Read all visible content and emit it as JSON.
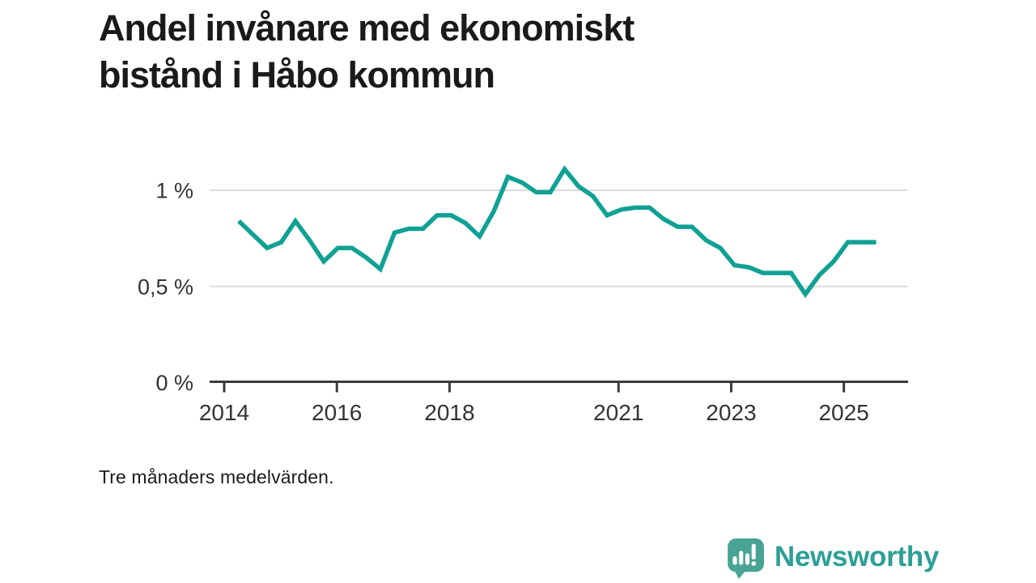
{
  "title": {
    "line1": "Andel invånare med ekonomiskt",
    "line2": "bistånd i Håbo kommun"
  },
  "footnote": "Tre månaders medelvärden.",
  "logo": {
    "text": "Newsworthy",
    "icon": "speech-bubble-with-bar-chart-and-exclamation"
  },
  "colors": {
    "line": "#0FA194",
    "axis": "#3b3b3b",
    "grid": "#dbdbdb",
    "tick_text": "#333333",
    "title_text": "#1a1a1a",
    "logo_mark": "#48A394",
    "logo_text": "#2D9F96"
  },
  "chart_data": {
    "type": "line",
    "title": "Andel invånare med ekonomiskt bistånd i Håbo kommun",
    "subtitle": "Tre månaders medelvärden.",
    "unit": "%",
    "decimal_separator": ",",
    "grid": "horizontal-only",
    "legend": "none",
    "xlim_years": [
      2013.75,
      2026.15
    ],
    "ylim": [
      0,
      1.17
    ],
    "x_tick_years": [
      2014,
      2016,
      2018,
      2021,
      2023,
      2025
    ],
    "y_ticks": [
      {
        "value": 0,
        "label": "0 %"
      },
      {
        "value": 0.5,
        "label": "0,5 %"
      },
      {
        "value": 1,
        "label": "1 %"
      }
    ],
    "series": [
      {
        "name": "Andel invånare med ekonomiskt bistånd",
        "color": "#0FA194",
        "x": [
          "2014 Q2",
          "2014 Q3",
          "2014 Q4",
          "2015 Q1",
          "2015 Q2",
          "2015 Q3",
          "2015 Q4",
          "2016 Q1",
          "2016 Q2",
          "2016 Q3",
          "2016 Q4",
          "2017 Q1",
          "2017 Q2",
          "2017 Q3",
          "2017 Q4",
          "2018 Q1",
          "2018 Q2",
          "2018 Q3",
          "2018 Q4",
          "2019 Q1",
          "2019 Q2",
          "2019 Q3",
          "2019 Q4",
          "2020 Q1",
          "2020 Q2",
          "2020 Q3",
          "2020 Q4",
          "2021 Q1",
          "2021 Q2",
          "2021 Q3",
          "2021 Q4",
          "2022 Q1",
          "2022 Q2",
          "2022 Q3",
          "2022 Q4",
          "2023 Q1",
          "2023 Q2",
          "2023 Q3",
          "2023 Q4",
          "2024 Q1",
          "2024 Q2",
          "2024 Q3",
          "2024 Q4",
          "2025 Q1",
          "2025 Q2",
          "2025 Q3"
        ],
        "values": [
          0.84,
          0.77,
          0.7,
          0.73,
          0.84,
          0.74,
          0.63,
          0.7,
          0.7,
          0.65,
          0.59,
          0.78,
          0.8,
          0.8,
          0.87,
          0.87,
          0.83,
          0.76,
          0.89,
          1.07,
          1.04,
          0.99,
          0.99,
          1.11,
          1.02,
          0.97,
          0.87,
          0.9,
          0.91,
          0.91,
          0.85,
          0.81,
          0.81,
          0.74,
          0.7,
          0.61,
          0.6,
          0.57,
          0.57,
          0.57,
          0.46,
          0.56,
          0.63,
          0.73,
          0.73,
          0.73
        ]
      }
    ]
  }
}
